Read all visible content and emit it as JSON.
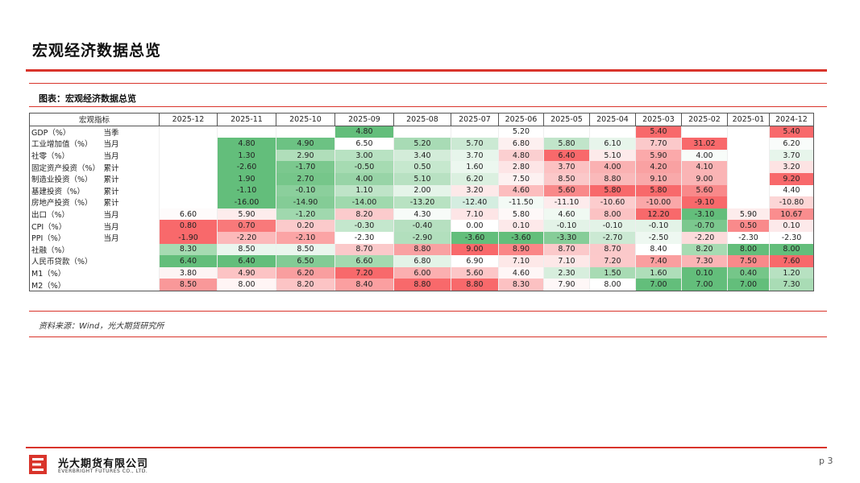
{
  "page": {
    "title": "宏观经济数据总览",
    "chart_caption": "图表：宏观经济数据总览",
    "source": "资料来源：Wind，光大期货研究所",
    "company_cn": "光大期货有限公司",
    "company_en": "EVERBRIGHT FUTURES CO., LTD.",
    "page_number": "p 3"
  },
  "colors": {
    "accent_red": "#d9342b",
    "heat_red": "#f8696b",
    "heat_green": "#63be7b"
  },
  "table": {
    "header_label": "宏观指标",
    "columns": [
      "2025-12",
      "2025-11",
      "2025-10",
      "2025-09",
      "2025-08",
      "2025-07",
      "2025-06",
      "2025-05",
      "2025-04",
      "2025-03",
      "2025-02",
      "2025-01",
      "2024-12"
    ],
    "rows": [
      {
        "name": "GDP（%）",
        "freq": "当季",
        "values": [
          "",
          "",
          "",
          "4.80",
          "",
          "",
          "5.20",
          "",
          "",
          "5.40",
          "",
          "",
          "5.40"
        ]
      },
      {
        "name": "工业增加值（%）",
        "freq": "当月",
        "values": [
          "",
          "4.80",
          "4.90",
          "6.50",
          "5.20",
          "5.70",
          "6.80",
          "5.80",
          "6.10",
          "7.70",
          "31.02",
          "",
          "6.20"
        ]
      },
      {
        "name": "社零（%）",
        "freq": "当月",
        "values": [
          "",
          "1.30",
          "2.90",
          "3.00",
          "3.40",
          "3.70",
          "4.80",
          "6.40",
          "5.10",
          "5.90",
          "4.00",
          "",
          "3.70"
        ]
      },
      {
        "name": "固定资产投资（%）",
        "freq": "累计",
        "values": [
          "",
          "-2.60",
          "-1.70",
          "-0.50",
          "0.50",
          "1.60",
          "2.80",
          "3.70",
          "4.00",
          "4.20",
          "4.10",
          "",
          "3.20"
        ]
      },
      {
        "name": "制造业投资（%）",
        "freq": "累计",
        "values": [
          "",
          "1.90",
          "2.70",
          "4.00",
          "5.10",
          "6.20",
          "7.50",
          "8.50",
          "8.80",
          "9.10",
          "9.00",
          "",
          "9.20"
        ]
      },
      {
        "name": "基建投资（%）",
        "freq": "累计",
        "values": [
          "",
          "-1.10",
          "-0.10",
          "1.10",
          "2.00",
          "3.20",
          "4.60",
          "5.60",
          "5.80",
          "5.80",
          "5.60",
          "",
          "4.40"
        ]
      },
      {
        "name": "房地产投资（%）",
        "freq": "累计",
        "values": [
          "",
          "-16.00",
          "-14.90",
          "-14.00",
          "-13.20",
          "-12.40",
          "-11.50",
          "-11.10",
          "-10.60",
          "-10.00",
          "-9.10",
          "",
          "-10.80"
        ]
      },
      {
        "name": "出口（%）",
        "freq": "当月",
        "values": [
          "6.60",
          "5.90",
          "-1.20",
          "8.20",
          "4.30",
          "7.10",
          "5.80",
          "4.60",
          "8.00",
          "12.20",
          "-3.10",
          "5.90",
          "10.67"
        ]
      },
      {
        "name": "CPI（%）",
        "freq": "当月",
        "values": [
          "0.80",
          "0.70",
          "0.20",
          "-0.30",
          "-0.40",
          "0.00",
          "0.10",
          "-0.10",
          "-0.10",
          "-0.10",
          "-0.70",
          "0.50",
          "0.10"
        ]
      },
      {
        "name": "PPI（%）",
        "freq": "当月",
        "values": [
          "-1.90",
          "-2.20",
          "-2.10",
          "-2.30",
          "-2.90",
          "-3.60",
          "-3.60",
          "-3.30",
          "-2.70",
          "-2.50",
          "-2.20",
          "-2.30",
          "-2.30"
        ]
      },
      {
        "name": "社融（%）",
        "freq": "",
        "values": [
          "8.30",
          "8.50",
          "8.50",
          "8.70",
          "8.80",
          "9.00",
          "8.90",
          "8.70",
          "8.70",
          "8.40",
          "8.20",
          "8.00",
          "8.00"
        ]
      },
      {
        "name": "人民币贷款（%）",
        "freq": "",
        "values": [
          "6.40",
          "6.40",
          "6.50",
          "6.60",
          "6.80",
          "6.90",
          "7.10",
          "7.10",
          "7.20",
          "7.40",
          "7.30",
          "7.50",
          "7.60"
        ]
      },
      {
        "name": "M1（%）",
        "freq": "",
        "values": [
          "3.80",
          "4.90",
          "6.20",
          "7.20",
          "6.00",
          "5.60",
          "4.60",
          "2.30",
          "1.50",
          "1.60",
          "0.10",
          "0.40",
          "1.20"
        ]
      },
      {
        "name": "M2（%）",
        "freq": "",
        "values": [
          "8.50",
          "8.00",
          "8.20",
          "8.40",
          "8.80",
          "8.80",
          "8.30",
          "7.90",
          "8.00",
          "7.00",
          "7.00",
          "7.00",
          "7.30"
        ]
      }
    ]
  },
  "cell_colors": [
    [
      "",
      "",
      "",
      "#63be7b",
      "",
      "",
      "#ffffff",
      "",
      "",
      "#f8696b",
      "",
      "",
      "#f8696b"
    ],
    [
      "",
      "#63be7b",
      "#6cc283",
      "#ffffff",
      "#a8dbb5",
      "#cbe9d3",
      "#fdf0f0",
      "#c1e5ca",
      "#e7f5eb",
      "#fbc9ca",
      "#f8696b",
      "",
      "#f9fcfa"
    ],
    [
      "",
      "#63be7b",
      "#b0deba",
      "#b8e2c2",
      "#d3ecd9",
      "#e7f5eb",
      "#fbcfd0",
      "#f8696b",
      "#fdeaea",
      "#fba9aa",
      "#f8fcf9",
      "",
      "#e7f5eb"
    ],
    [
      "",
      "#63be7b",
      "#7bc88e",
      "#a6dbb2",
      "#c6e8ce",
      "#ecf7ef",
      "#fde5e6",
      "#fcc1c2",
      "#fab1b2",
      "#f9a1a2",
      "#fab4b5",
      "",
      "#fde3e3"
    ],
    [
      "",
      "#63be7b",
      "#76c68a",
      "#98d4a7",
      "#b8e1c2",
      "#dbf0e0",
      "#fdf1f1",
      "#fbc8c9",
      "#fab9ba",
      "#f9a9aa",
      "#fab4b5",
      "",
      "#f8696b"
    ],
    [
      "",
      "#63be7b",
      "#8bcf9c",
      "#bfe4c8",
      "#e5f4e9",
      "#fde9e9",
      "#fcbdbe",
      "#f9898a",
      "#f8696b",
      "#f8696b",
      "#f9898a",
      "",
      "#ffffff"
    ],
    [
      "",
      "#63be7b",
      "#84cc96",
      "#a0d9ad",
      "#b8e2c2",
      "#d4ede0",
      "#f3faf5",
      "#fdebec",
      "#fccccd",
      "#faa7a8",
      "#f8696b",
      "",
      "#fcd6d6"
    ],
    [
      "#fefbfb",
      "#fdecec",
      "#a0d8ae",
      "#fbcbcc",
      "#f7fbf8",
      "#fde5e6",
      "#fef8f8",
      "#f0f9f2",
      "#fbc2c3",
      "#f8696b",
      "#63be7b",
      "#fdecec",
      "#fa8d8e"
    ],
    [
      "#f8696b",
      "#f9797a",
      "#fbcacb",
      "#c4e7cd",
      "#b6e0c0",
      "#ffffff",
      "#fde9ea",
      "#e3f3e7",
      "#e3f3e7",
      "#e3f3e7",
      "#7bc88e",
      "#f98a8b",
      "#fde9ea"
    ],
    [
      "#f8696b",
      "#fcb9ba",
      "#fba4a5",
      "#ffffff",
      "#b2dfbd",
      "#63be7b",
      "#63be7b",
      "#86cd98",
      "#cbe9d3",
      "#eef8f1",
      "#fcdbdb",
      "#ffffff",
      "#ffffff"
    ],
    [
      "#a6dbb2",
      "#eaf6ee",
      "#eaf6ee",
      "#fbc9ca",
      "#f9a1a2",
      "#f8696b",
      "#fa8687",
      "#fbc9ca",
      "#fbc9ca",
      "#ffffff",
      "#a6dbb2",
      "#63be7b",
      "#63be7b"
    ],
    [
      "#63be7b",
      "#63be7b",
      "#83cb95",
      "#a3d9af",
      "#e3f3e7",
      "#ffffff",
      "#fde8e8",
      "#fde8e8",
      "#fcc9ca",
      "#fa9e9f",
      "#fbb4b5",
      "#f9898a",
      "#f8696b"
    ],
    [
      "#fdf4f4",
      "#fcc3c4",
      "#f99e9f",
      "#f8696b",
      "#fbafb0",
      "#fcc6c7",
      "#fef6f6",
      "#d7eedd",
      "#a8dbb4",
      "#aedeb9",
      "#63be7b",
      "#75c689",
      "#b7e1c1"
    ],
    [
      "#f99899",
      "#fff5f5",
      "#fcc4c5",
      "#fb9fa0",
      "#f8696b",
      "#f8696b",
      "#fcc1c2",
      "#fef7f7",
      "#ffffff",
      "#63be7b",
      "#63be7b",
      "#63be7b",
      "#a9dcb5"
    ]
  ]
}
